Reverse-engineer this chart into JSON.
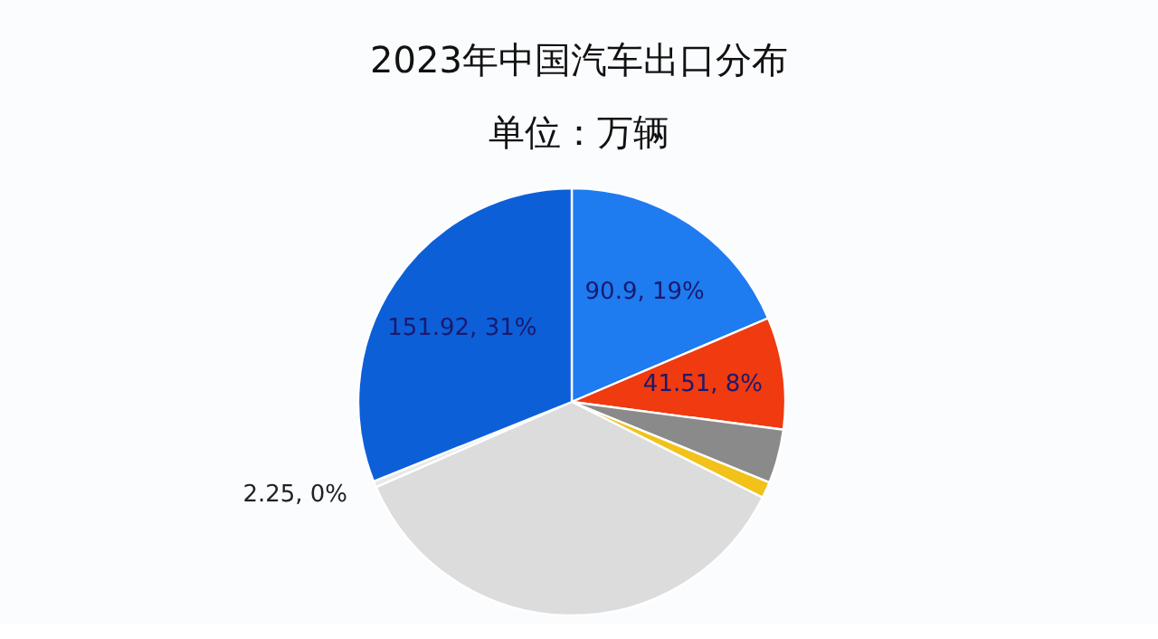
{
  "chart_data": {
    "type": "pie",
    "title": "2023年中国汽车出口分布",
    "subtitle": "单位：万辆",
    "categories": [
      null,
      null,
      null,
      null,
      null,
      null,
      null
    ],
    "values": [
      90.9,
      41.51,
      20,
      6,
      176.4,
      2.25,
      151.92
    ],
    "colors": [
      "#1e7bf0",
      "#f03a10",
      "#8a8a8a",
      "#f2c21a",
      "#dcdcdc",
      "#e8e8e8",
      "#0d5fd8"
    ],
    "value_labels": [
      "90.9, 19%",
      "41.51, 8%",
      null,
      null,
      null,
      "2.25, 0%",
      "151.92, 31%"
    ]
  }
}
